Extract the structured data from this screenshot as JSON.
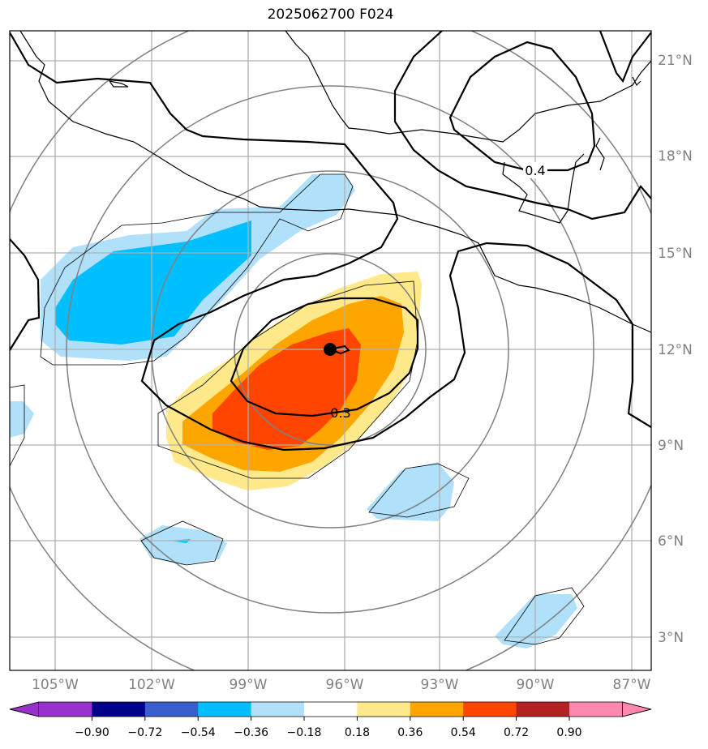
{
  "title": "2025062700 F024",
  "map": {
    "lon_ticks": [
      "105°W",
      "102°W",
      "99°W",
      "96°W",
      "93°W",
      "90°W",
      "87°W"
    ],
    "lat_ticks": [
      "3°N",
      "6°N",
      "9°N",
      "12°N",
      "15°N",
      "18°N",
      "21°N"
    ],
    "contour_labels": [
      "0.4",
      "0.3"
    ],
    "center_marker": "storm-center"
  },
  "colorbar": {
    "levels": [
      "−0.90",
      "−0.72",
      "−0.54",
      "−0.36",
      "−0.18",
      "0.18",
      "0.36",
      "0.54",
      "0.72",
      "0.90"
    ],
    "colors": [
      "#9932cc",
      "#00008b",
      "#3a5fcd",
      "#00bfff",
      "#b0e0fa",
      "#ffffff",
      "#ffe98a",
      "#ffa500",
      "#ff4500",
      "#b22222",
      "#ff88b0"
    ]
  }
}
